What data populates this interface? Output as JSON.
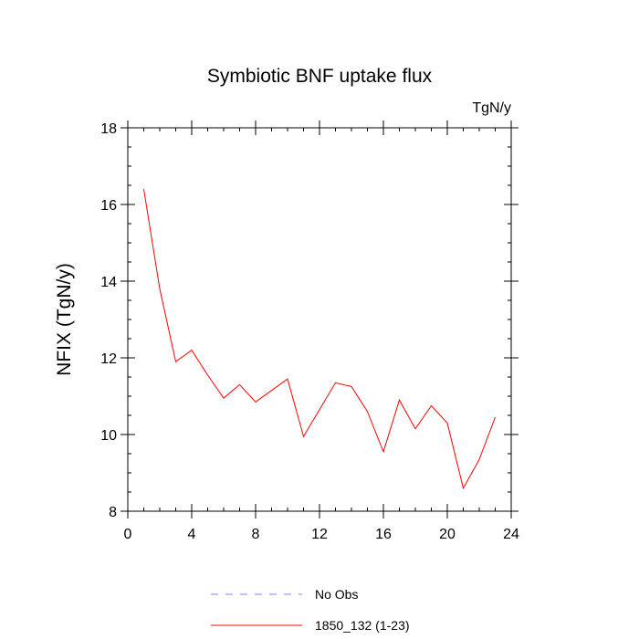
{
  "chart_data": {
    "type": "line",
    "title": "Symbiotic BNF uptake flux",
    "units_label": "TgN/y",
    "xlabel": "",
    "ylabel": "NFIX  (TgN/y)",
    "xlim": [
      0,
      24
    ],
    "ylim": [
      8,
      18
    ],
    "xticks": [
      0,
      4,
      8,
      12,
      16,
      20,
      24
    ],
    "yticks": [
      8,
      10,
      12,
      14,
      16,
      18
    ],
    "x_minor_step": 1,
    "y_minor_step": 0.5,
    "grid": false,
    "legend_position": "bottom-center",
    "series": [
      {
        "name": "No Obs",
        "color": "#8080ff",
        "style": "dashed",
        "x": [],
        "y": []
      },
      {
        "name": "1850_132 (1-23)",
        "color": "#ff0000",
        "style": "solid",
        "x": [
          1,
          2,
          3,
          4,
          5,
          6,
          7,
          8,
          9,
          10,
          11,
          12,
          13,
          14,
          15,
          16,
          17,
          18,
          19,
          20,
          21,
          22,
          23
        ],
        "y": [
          16.4,
          13.8,
          11.9,
          12.2,
          11.55,
          10.95,
          11.3,
          10.85,
          11.15,
          11.45,
          9.95,
          10.65,
          11.35,
          11.25,
          10.6,
          9.55,
          10.9,
          10.15,
          10.75,
          10.3,
          8.6,
          9.35,
          10.45
        ]
      }
    ]
  }
}
